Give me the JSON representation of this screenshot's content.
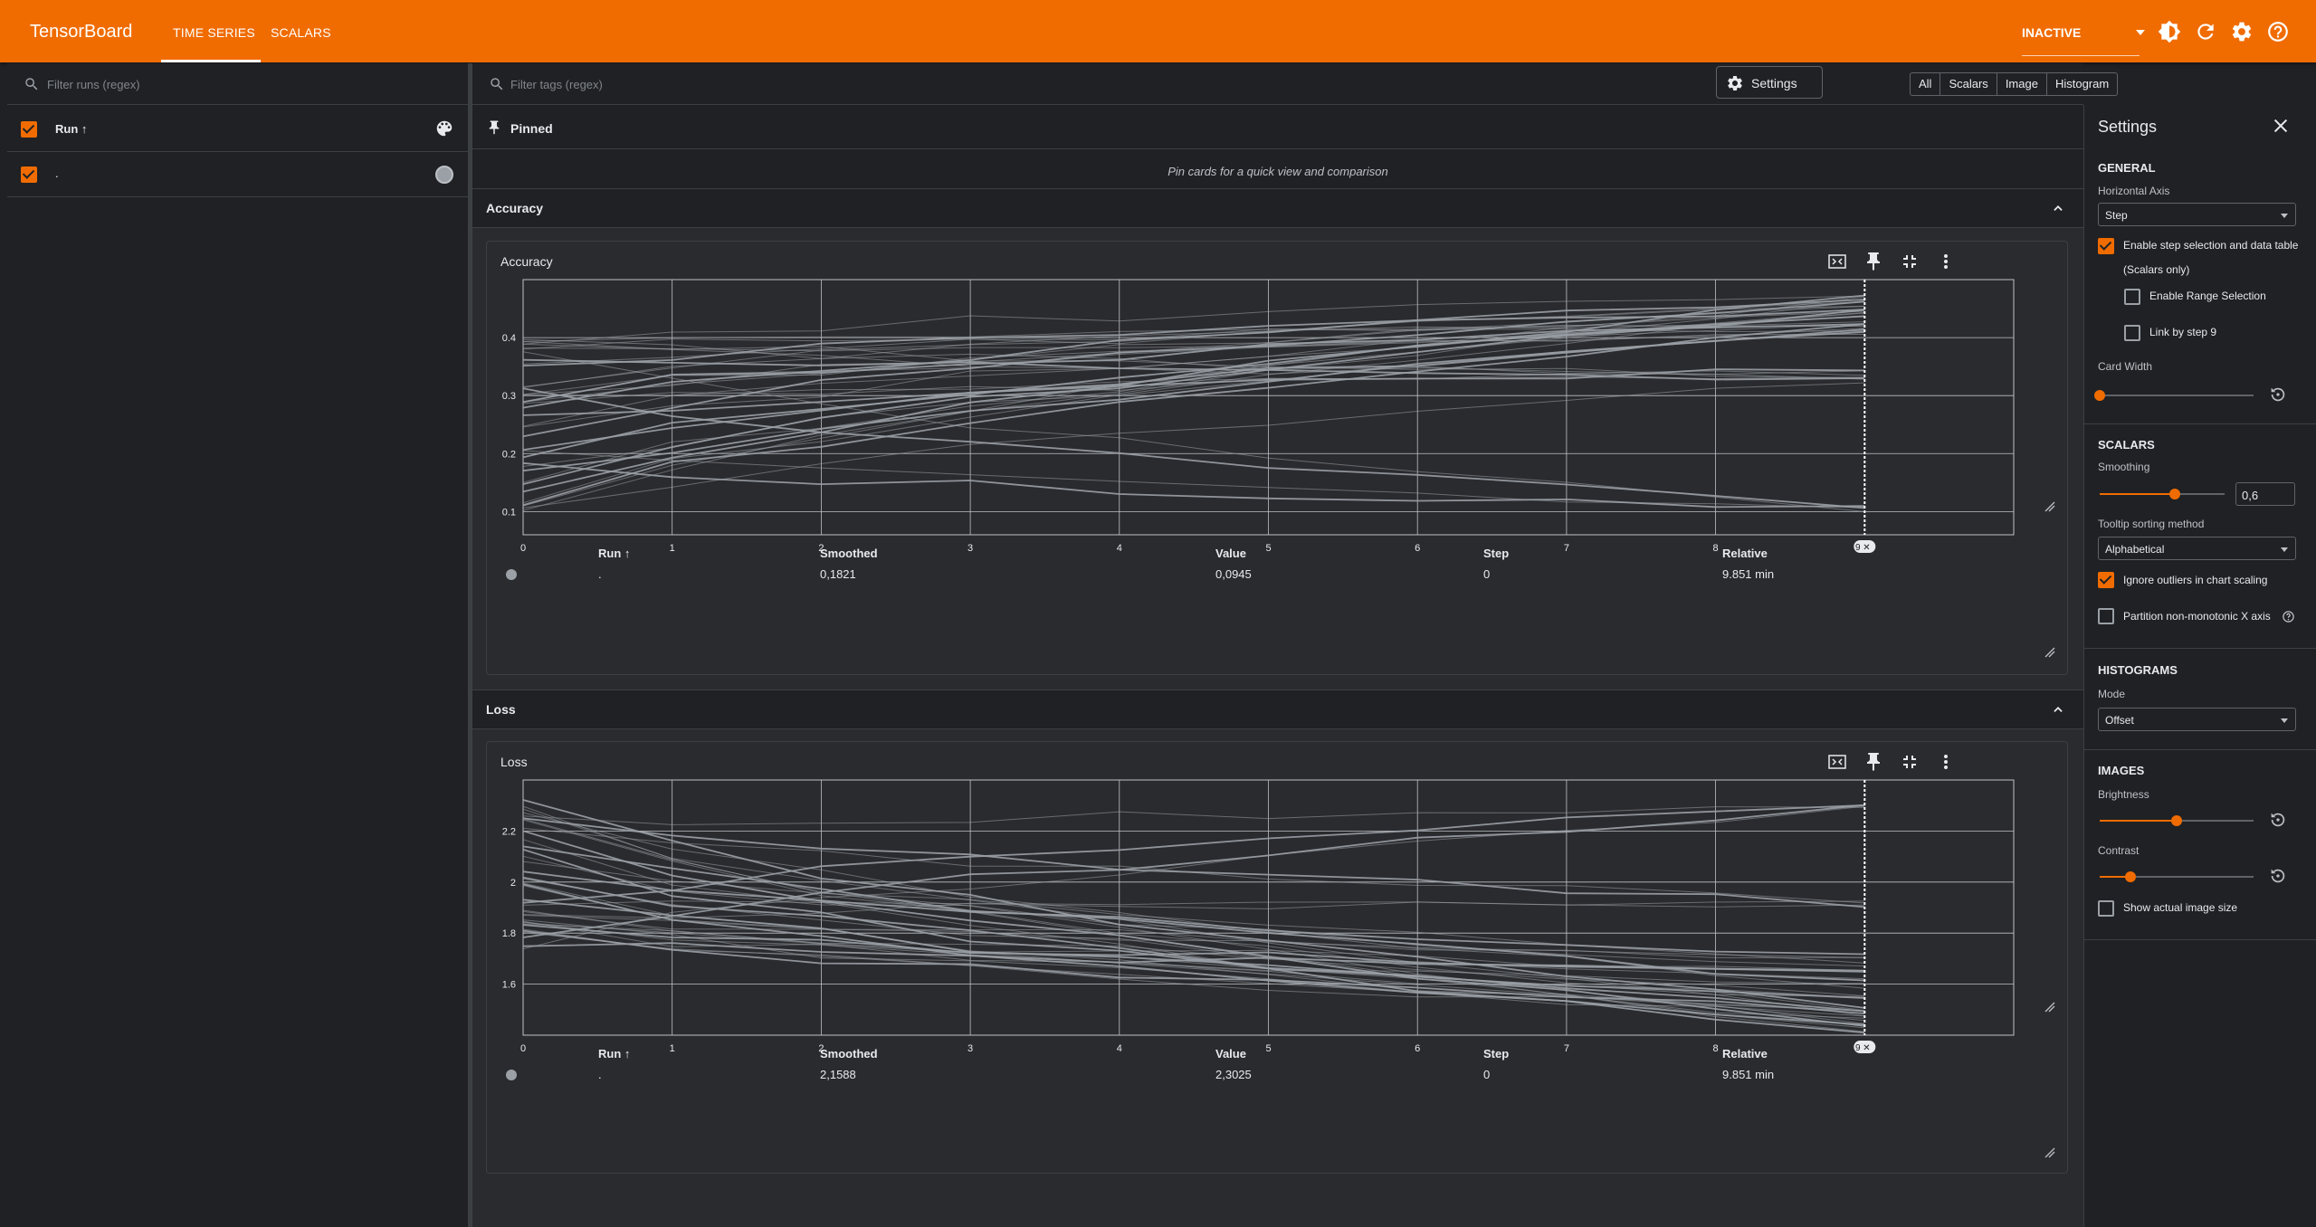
{
  "app": {
    "brand": "TensorBoard",
    "tabs": [
      "TIME SERIES",
      "SCALARS"
    ],
    "status": "INACTIVE",
    "colors": {
      "accent": "#f06c00",
      "line": "#9aa0a6"
    }
  },
  "runs": {
    "filter_placeholder": "Filter runs (regex)",
    "header_label": "Run ↑",
    "items": [
      {
        "name": ".",
        "checked": true
      }
    ]
  },
  "main": {
    "filter_placeholder": "Filter tags (regex)",
    "type_filters": [
      "All",
      "Scalars",
      "Image",
      "Histogram"
    ],
    "settings_button": "Settings",
    "pinned_title": "Pinned",
    "pinned_hint": "Pin cards for a quick view and comparison",
    "sections": [
      {
        "title": "Accuracy",
        "card_title": "Accuracy",
        "table": {
          "headers": [
            "Run ↑",
            "Smoothed",
            "Value",
            "Step",
            "Relative"
          ],
          "row": [
            ".",
            "0,1821",
            "0,0945",
            "0",
            "9.851 min"
          ]
        },
        "step_marker": "9"
      },
      {
        "title": "Loss",
        "card_title": "Loss",
        "table": {
          "headers": [
            "Run ↑",
            "Smoothed",
            "Value",
            "Step",
            "Relative"
          ],
          "row": [
            ".",
            "2,1588",
            "2,3025",
            "0",
            "9.851 min"
          ]
        },
        "step_marker": "9"
      }
    ]
  },
  "chart_data": [
    {
      "type": "line",
      "title": "Accuracy",
      "x_ticks": [
        "0",
        "1",
        "2",
        "3",
        "4",
        "5",
        "6",
        "7",
        "8"
      ],
      "y_ticks": [
        "0.1",
        "0.2",
        "0.3",
        "0.4"
      ],
      "xlim": [
        0,
        10
      ],
      "ylim": [
        0.06,
        0.5
      ],
      "grid": true,
      "series_count": 40,
      "series_color": "#9aa0a6",
      "step_marker": 9,
      "start_range": [
        0.1,
        0.4
      ],
      "end_values": [
        0.47,
        0.46,
        0.45,
        0.44,
        0.43,
        0.42,
        0.41,
        0.34,
        0.33,
        0.1
      ]
    },
    {
      "type": "line",
      "title": "Loss",
      "x_ticks": [
        "0",
        "1",
        "2",
        "3",
        "4",
        "5",
        "6",
        "7",
        "8"
      ],
      "y_ticks": [
        "1.6",
        "1.8",
        "2",
        "2.2"
      ],
      "xlim": [
        0,
        10
      ],
      "ylim": [
        1.4,
        2.4
      ],
      "grid": true,
      "series_count": 40,
      "series_color": "#9aa0a6",
      "step_marker": 9,
      "start_range": [
        1.72,
        2.32
      ],
      "end_values": [
        2.3,
        1.92,
        1.7,
        1.65,
        1.6,
        1.55,
        1.5,
        1.48,
        1.45,
        1.42
      ]
    }
  ],
  "settings_panel": {
    "title": "Settings",
    "general": {
      "heading": "GENERAL",
      "horizontal_axis_label": "Horizontal Axis",
      "horizontal_axis_value": "Step",
      "step_selection_label": "Enable step selection and data table",
      "step_selection_sub": "(Scalars only)",
      "step_selection_checked": true,
      "range_selection_label": "Enable Range Selection",
      "range_selection_checked": false,
      "link_by_step_label": "Link by step 9",
      "link_by_step_checked": false,
      "card_width_label": "Card Width",
      "card_width_level": 0
    },
    "scalars": {
      "heading": "SCALARS",
      "smoothing_label": "Smoothing",
      "smoothing_value": "0,6",
      "smoothing_level": 0.6,
      "tooltip_label": "Tooltip sorting method",
      "tooltip_value": "Alphabetical",
      "ignore_outliers_label": "Ignore outliers in chart scaling",
      "ignore_outliers_checked": true,
      "partition_label": "Partition non-monotonic X axis",
      "partition_checked": false
    },
    "histograms": {
      "heading": "HISTOGRAMS",
      "mode_label": "Mode",
      "mode_value": "Offset"
    },
    "images": {
      "heading": "IMAGES",
      "brightness_label": "Brightness",
      "brightness_level": 0.5,
      "contrast_label": "Contrast",
      "contrast_level": 0.2,
      "actual_size_label": "Show actual image size",
      "actual_size_checked": false
    }
  }
}
